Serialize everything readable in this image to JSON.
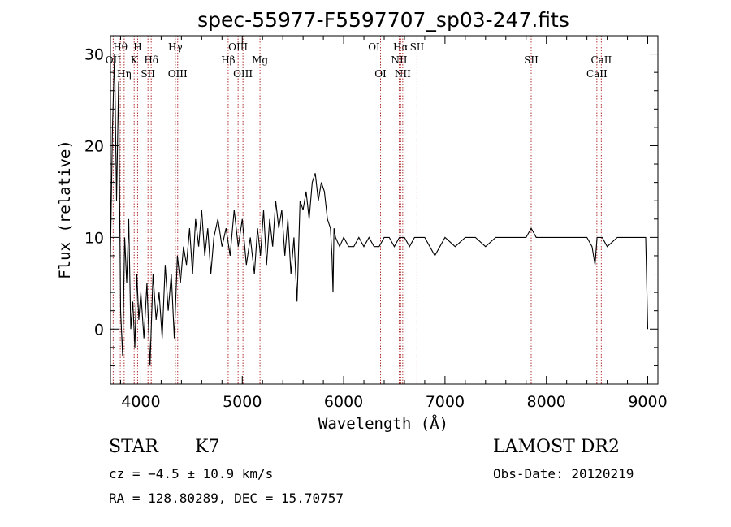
{
  "chart_data": {
    "type": "line",
    "title": "spec-55977-F5597707_sp03-247.fits",
    "xlabel": "Wavelength (Å)",
    "ylabel": "Flux (relative)",
    "xlim": [
      3700,
      9100
    ],
    "ylim": [
      -6,
      32
    ],
    "x_ticks": [
      4000,
      5000,
      6000,
      7000,
      8000,
      9000
    ],
    "y_ticks": [
      0,
      10,
      20,
      30
    ],
    "grid": false,
    "series": [
      {
        "color": "#000000",
        "x": [
          3700,
          3720,
          3740,
          3760,
          3780,
          3800,
          3820,
          3840,
          3860,
          3880,
          3900,
          3920,
          3940,
          3960,
          3980,
          4000,
          4030,
          4060,
          4090,
          4120,
          4150,
          4180,
          4210,
          4240,
          4270,
          4300,
          4330,
          4360,
          4390,
          4420,
          4450,
          4480,
          4510,
          4540,
          4570,
          4600,
          4630,
          4660,
          4690,
          4720,
          4760,
          4800,
          4840,
          4880,
          4920,
          4960,
          5000,
          5040,
          5080,
          5120,
          5150,
          5180,
          5210,
          5240,
          5270,
          5300,
          5330,
          5360,
          5390,
          5420,
          5450,
          5480,
          5510,
          5540,
          5570,
          5600,
          5630,
          5660,
          5690,
          5720,
          5750,
          5780,
          5810,
          5840,
          5870,
          5885,
          5895,
          5905,
          5920,
          5960,
          6000,
          6050,
          6100,
          6150,
          6200,
          6250,
          6300,
          6350,
          6400,
          6450,
          6500,
          6550,
          6600,
          6650,
          6700,
          6750,
          6800,
          6850,
          6900,
          6950,
          7000,
          7100,
          7200,
          7300,
          7400,
          7500,
          7600,
          7700,
          7800,
          7850,
          7900,
          8000,
          8100,
          8200,
          8300,
          8400,
          8450,
          8480,
          8500,
          8550,
          8600,
          8700,
          8800,
          8900,
          8980,
          9000
        ],
        "y": [
          8,
          22,
          30,
          14,
          27,
          2,
          -3,
          10,
          5,
          12,
          0,
          3,
          -2,
          6,
          1,
          4,
          -1,
          5,
          -4,
          6,
          1,
          4,
          -1,
          7,
          2,
          6,
          -1,
          8,
          5,
          9,
          7,
          11,
          6,
          12,
          9,
          13,
          8,
          11,
          6,
          10,
          12,
          9,
          11,
          8,
          13,
          9,
          12,
          7,
          10,
          6,
          11,
          8,
          13,
          7,
          12,
          9,
          14,
          11,
          13,
          8,
          12,
          6,
          10,
          3,
          14,
          13,
          15,
          12,
          16,
          17,
          14,
          16,
          15,
          12,
          11,
          8,
          4,
          11,
          10,
          9,
          10,
          9,
          9,
          10,
          9,
          10,
          9,
          9,
          10,
          10,
          9,
          10,
          10,
          9,
          10,
          10,
          10,
          9,
          8,
          9,
          10,
          9,
          10,
          10,
          9,
          10,
          10,
          10,
          10,
          11,
          10,
          10,
          10,
          10,
          10,
          10,
          9,
          7,
          10,
          10,
          9,
          10,
          10,
          10,
          10,
          0
        ]
      }
    ],
    "spectral_lines": [
      {
        "label": "Hθ",
        "lambda": 3797,
        "row": 1
      },
      {
        "label": "OII",
        "lambda": 3727,
        "row": 2
      },
      {
        "label": "H",
        "lambda": 3968,
        "row": 1
      },
      {
        "label": "K",
        "lambda": 3934,
        "row": 2
      },
      {
        "label": "Hη",
        "lambda": 3835,
        "row": 3
      },
      {
        "label": "Hδ",
        "lambda": 4102,
        "row": 2
      },
      {
        "label": "SII",
        "lambda": 4070,
        "row": 3
      },
      {
        "label": "Hγ",
        "lambda": 4340,
        "row": 1
      },
      {
        "label": "OIII",
        "lambda": 4363,
        "row": 3
      },
      {
        "label": "OIII",
        "lambda": 4959,
        "row": 1
      },
      {
        "label": "Hβ",
        "lambda": 4861,
        "row": 2
      },
      {
        "label": "OIII",
        "lambda": 5007,
        "row": 3
      },
      {
        "label": "Mg",
        "lambda": 5175,
        "row": 2
      },
      {
        "label": "OI",
        "lambda": 6300,
        "row": 1
      },
      {
        "label": "OI",
        "lambda": 6364,
        "row": 3
      },
      {
        "label": "Hα",
        "lambda": 6563,
        "row": 1
      },
      {
        "label": "NII",
        "lambda": 6548,
        "row": 2
      },
      {
        "label": "NII",
        "lambda": 6583,
        "row": 3
      },
      {
        "label": "SII",
        "lambda": 6724,
        "row": 1
      },
      {
        "label": "SII",
        "lambda": 7850,
        "row": 2
      },
      {
        "label": "CaII",
        "lambda": 8542,
        "row": 2
      },
      {
        "label": "CaII",
        "lambda": 8498,
        "row": 3
      }
    ]
  },
  "info": {
    "object_class": "STAR",
    "subclass": "K7",
    "survey": "LAMOST DR2",
    "redshift": "cz = −4.5 ± 10.9 km/s",
    "obs_date": "Obs-Date: 20120219",
    "coords": "RA = 128.80289, DEC =  15.70757"
  }
}
